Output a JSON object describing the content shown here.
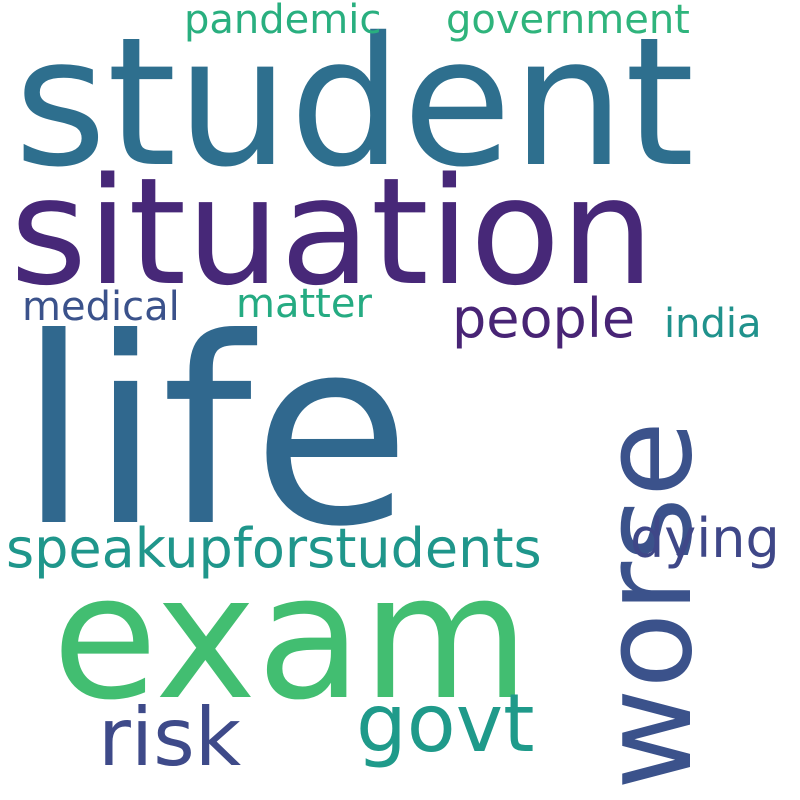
{
  "words": [
    {
      "text": "student",
      "color": "#2e6f8e"
    },
    {
      "text": "situation",
      "color": "#472878"
    },
    {
      "text": "life",
      "color": "#30688e"
    },
    {
      "text": "exam",
      "color": "#42be71"
    },
    {
      "text": "worse",
      "color": "#3b528b"
    },
    {
      "text": "speakupforstudents",
      "color": "#1f968b"
    },
    {
      "text": "risk",
      "color": "#3e4a89"
    },
    {
      "text": "govt",
      "color": "#1f9a8a"
    },
    {
      "text": "people",
      "color": "#482475"
    },
    {
      "text": "dying",
      "color": "#3f4788"
    },
    {
      "text": "pandemic",
      "color": "#29af7f"
    },
    {
      "text": "government",
      "color": "#2fb47c"
    },
    {
      "text": "medical",
      "color": "#3b528b"
    },
    {
      "text": "matter",
      "color": "#25ab82"
    },
    {
      "text": "india",
      "color": "#20928c"
    }
  ]
}
